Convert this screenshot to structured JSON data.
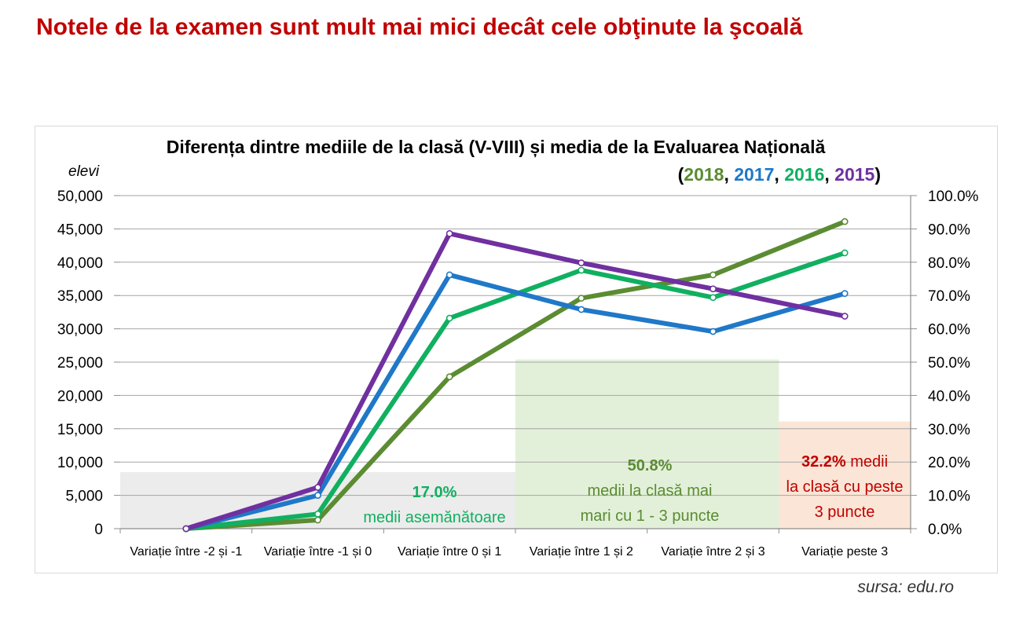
{
  "headline": "Notele de la examen sunt mult mai mici decât cele obţinute la şcoală",
  "source": "sursa: edu.ro",
  "chart_data": {
    "type": "line",
    "title": "Diferența dintre mediile de la clasă (V-VIII) și media de la Evaluarea Națională",
    "subtitle_parts": [
      {
        "text": "(",
        "color": "#000000"
      },
      {
        "text": "2018",
        "color": "#5b8c32"
      },
      {
        "text": ", ",
        "color": "#000000"
      },
      {
        "text": "2017",
        "color": "#1f78c8"
      },
      {
        "text": ", ",
        "color": "#000000"
      },
      {
        "text": "2016",
        "color": "#10b060"
      },
      {
        "text": ", ",
        "color": "#000000"
      },
      {
        "text": "2015",
        "color": "#7030a0"
      },
      {
        "text": ")",
        "color": "#000000"
      }
    ],
    "ylabel": "elevi",
    "ylim": [
      0,
      50000
    ],
    "y_ticks": [
      "0",
      "5,000",
      "10,000",
      "15,000",
      "20,000",
      "25,000",
      "30,000",
      "35,000",
      "40,000",
      "45,000",
      "50,000"
    ],
    "y2lim": [
      0,
      100
    ],
    "y2_ticks": [
      "0.0%",
      "10.0%",
      "20.0%",
      "30.0%",
      "40.0%",
      "50.0%",
      "60.0%",
      "70.0%",
      "80.0%",
      "90.0%",
      "100.0%"
    ],
    "categories": [
      "Variație între -2 și -1",
      "Variație între -1 și 0",
      "Variație între 0 și 1",
      "Variație între 1 și 2",
      "Variație între 2 și 3",
      "Variație peste 3"
    ],
    "grid": true,
    "series": [
      {
        "name": "2018",
        "color": "#5b8c32",
        "values": [
          0,
          1300,
          22800,
          34600,
          38100,
          46100
        ]
      },
      {
        "name": "2016",
        "color": "#10b060",
        "values": [
          0,
          2200,
          31600,
          38800,
          34700,
          41400
        ]
      },
      {
        "name": "2017",
        "color": "#1f78c8",
        "values": [
          0,
          5000,
          38100,
          32900,
          29600,
          35300
        ]
      },
      {
        "name": "2015",
        "color": "#7030a0",
        "values": [
          0,
          6200,
          44300,
          39900,
          36000,
          31900
        ]
      }
    ],
    "bands": [
      {
        "from_category": 0,
        "to_category": 2,
        "value_pct": 17.0,
        "color": "#ececec"
      },
      {
        "from_category": 3,
        "to_category": 4,
        "value_pct": 50.8,
        "color": "#e2f0d9"
      },
      {
        "from_category": 5,
        "to_category": 5,
        "value_pct": 32.2,
        "color": "#fbe5d6"
      }
    ],
    "annotations": [
      {
        "bold": "17.0%",
        "bold_color": "#10b060",
        "lines": [
          "medii asemănătoare"
        ],
        "color": "#10b060"
      },
      {
        "bold": "50.8%",
        "bold_color": "#5b8c32",
        "lines": [
          "medii la clasă mai",
          "mari cu 1 - 3 puncte"
        ],
        "color": "#5b8c32"
      },
      {
        "bold": "32.2%",
        "bold_color": "#c00000",
        "first_line_rest": " medii",
        "lines": [
          "la clasă cu peste",
          "3 puncte"
        ],
        "color": "#c00000"
      }
    ]
  }
}
